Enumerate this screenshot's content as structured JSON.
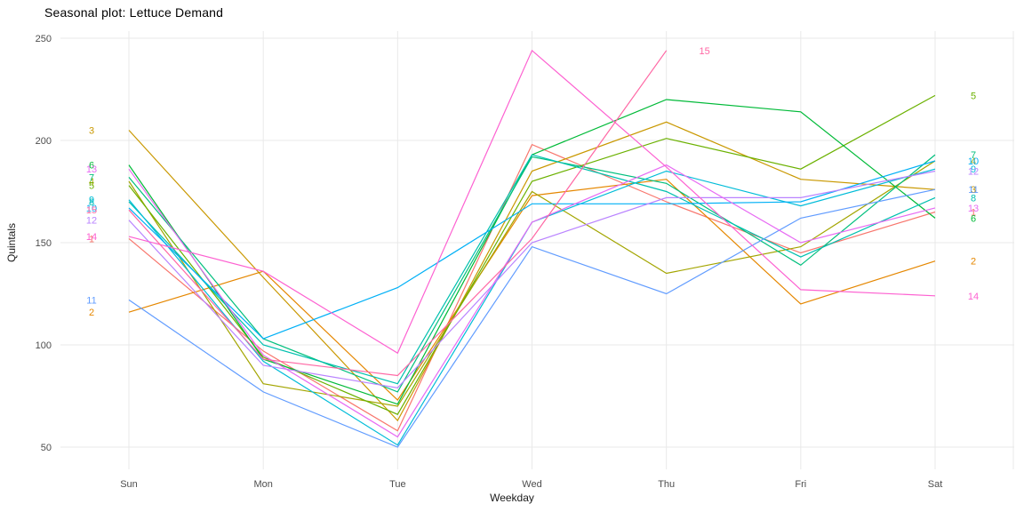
{
  "title": "Seasonal plot: Lettuce Demand",
  "axes": {
    "x_title": "Weekday",
    "y_title": "Quintals"
  },
  "chart_data": {
    "type": "line",
    "title": "Seasonal plot: Lettuce Demand",
    "xlabel": "Weekday",
    "ylabel": "Quintals",
    "categories": [
      "Sun",
      "Mon",
      "Tue",
      "Wed",
      "Thu",
      "Fri",
      "Sat"
    ],
    "yticks": [
      50,
      100,
      150,
      200,
      250
    ],
    "ylim": [
      40,
      255
    ],
    "grid": true,
    "legend_position": "line-end-labels-both-sides",
    "background": "#ffffff",
    "gridline_color": "#e9e9e9",
    "series": [
      {
        "name": "1",
        "color": "#F8766D",
        "values": [
          152,
          97,
          58,
          198,
          170,
          145,
          165
        ]
      },
      {
        "name": "2",
        "color": "#E58700",
        "values": [
          116,
          136,
          73,
          173,
          181,
          120,
          141
        ]
      },
      {
        "name": "3",
        "color": "#C99800",
        "values": [
          205,
          133,
          63,
          185,
          209,
          181,
          176
        ]
      },
      {
        "name": "4",
        "color": "#A3A500",
        "values": [
          180,
          81,
          70,
          175,
          135,
          148,
          190
        ]
      },
      {
        "name": "5",
        "color": "#6BB100",
        "values": [
          178,
          94,
          66,
          180,
          201,
          186,
          222
        ]
      },
      {
        "name": "6",
        "color": "#00BA38",
        "values": [
          188,
          93,
          71,
          193,
          220,
          214,
          162
        ]
      },
      {
        "name": "7",
        "color": "#00BF7D",
        "values": [
          182,
          103,
          77,
          192,
          179,
          139,
          193
        ]
      },
      {
        "name": "8",
        "color": "#00C0AF",
        "values": [
          170,
          100,
          81,
          193,
          175,
          143,
          172
        ]
      },
      {
        "name": "9",
        "color": "#00BCD8",
        "values": [
          171,
          92,
          51,
          160,
          185,
          168,
          186
        ]
      },
      {
        "name": "10",
        "color": "#00B0F6",
        "values": [
          167,
          103,
          128,
          169,
          169,
          170,
          190
        ]
      },
      {
        "name": "11",
        "color": "#619CFF",
        "values": [
          122,
          77,
          50,
          148,
          125,
          162,
          176
        ]
      },
      {
        "name": "12",
        "color": "#B983FF",
        "values": [
          161,
          90,
          79,
          150,
          172,
          172,
          185
        ]
      },
      {
        "name": "13",
        "color": "#E76BF3",
        "values": [
          186,
          95,
          55,
          160,
          188,
          150,
          167
        ]
      },
      {
        "name": "14",
        "color": "#FD61D1",
        "values": [
          153,
          136,
          96,
          244,
          187,
          127,
          124
        ]
      },
      {
        "name": "15",
        "color": "#FF67A4",
        "values": [
          166,
          93,
          85,
          152,
          244,
          null,
          null
        ]
      }
    ]
  }
}
